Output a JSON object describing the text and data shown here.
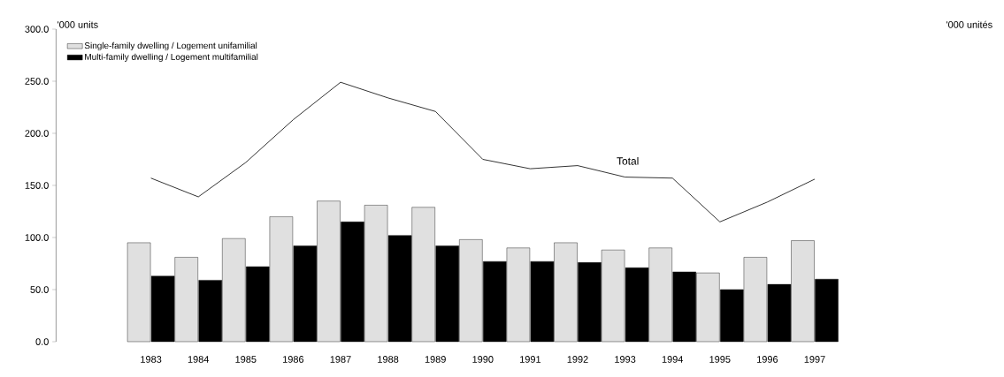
{
  "chart_data": {
    "type": "bar",
    "ylabel": "'000 units",
    "annotations": [
      "'000 unités",
      "Total"
    ],
    "categories": [
      null,
      "1983",
      "1984",
      "1985",
      "1986",
      "1987",
      "1988",
      "1989",
      "1990",
      "1991",
      "1992",
      "1993",
      "1994",
      "1995",
      "1996",
      "1997"
    ],
    "series": [
      {
        "name": "Single-family dwelling / Logement unifamilial",
        "color": "#e0e0e0",
        "values": [
          null,
          95,
          81,
          99,
          120,
          135,
          131,
          129,
          98,
          90,
          95,
          88,
          90,
          66,
          81,
          97
        ]
      },
      {
        "name": "Multi-family dwelling / Logement multifamilial",
        "color": "#000000",
        "values": [
          null,
          63,
          59,
          72,
          92,
          115,
          102,
          92,
          77,
          77,
          76,
          71,
          67,
          50,
          55,
          60
        ]
      },
      {
        "type": "line",
        "color": "#000000",
        "values": [
          null,
          157,
          139,
          172,
          213,
          249,
          234,
          221,
          175,
          166,
          169,
          158,
          157,
          115,
          134,
          156
        ]
      }
    ],
    "ylim": [
      0,
      300
    ],
    "yticks": [
      {
        "value": 0,
        "label": "0.0"
      },
      {
        "value": 50,
        "label": "50.0"
      },
      {
        "value": 100,
        "label": "100.0"
      },
      {
        "value": 150,
        "label": "150.0"
      },
      {
        "value": 200,
        "label": "200.0"
      },
      {
        "value": 250,
        "label": "250.0"
      },
      {
        "value": 300,
        "label": "300.0"
      }
    ],
    "legend": "top left",
    "grid": false
  }
}
